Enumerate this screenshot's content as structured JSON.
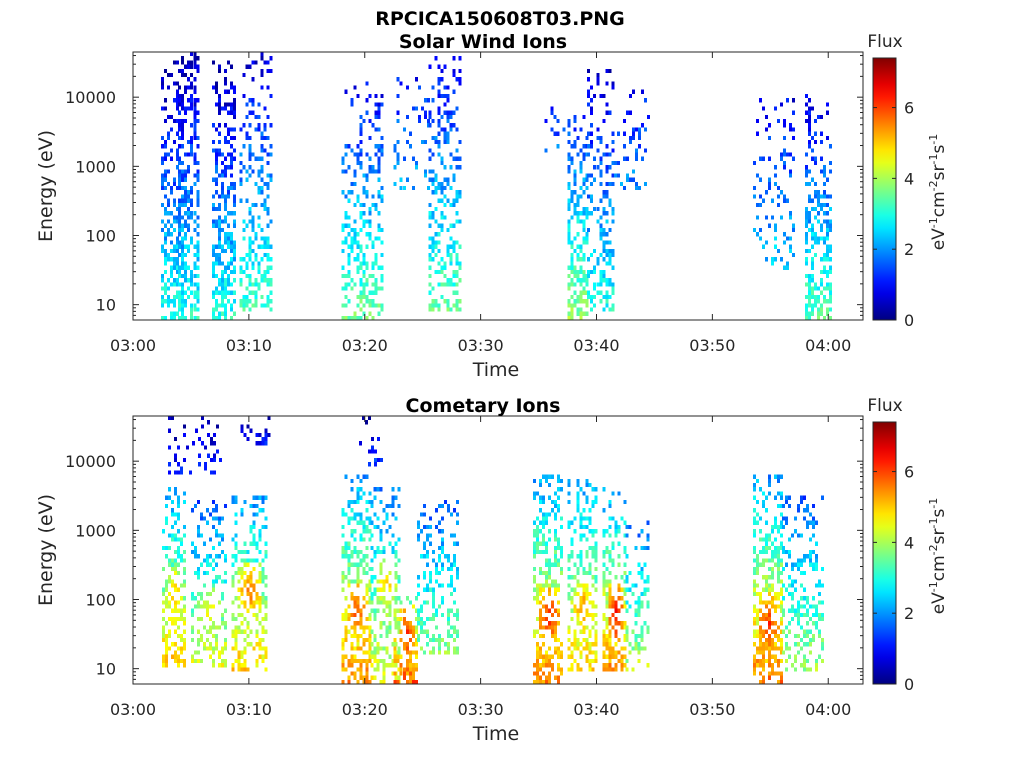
{
  "figure": {
    "title": "RPCICA150608T03.PNG"
  },
  "colorbar": {
    "label": "Flux",
    "unit_base": "eV",
    "unit_sup1": "-1",
    "unit_mid1": "cm",
    "unit_sup2": "-2",
    "unit_mid2": "sr",
    "unit_sup3": "-1",
    "unit_mid3": "s",
    "unit_sup4": "-1",
    "ticks": [
      "0",
      "2",
      "4",
      "6"
    ],
    "tick_values": [
      0,
      2,
      4,
      6
    ],
    "range": [
      0,
      7.4
    ],
    "colormap": "jet"
  },
  "chart_data": [
    {
      "type": "heatmap",
      "title": "Solar Wind Ions",
      "xlabel": "Time",
      "ylabel": "Energy (eV)",
      "x_range_minutes": [
        0,
        63
      ],
      "y_range_eV": [
        6,
        45000
      ],
      "y_scale": "log",
      "xticks": [
        "03:00",
        "03:10",
        "03:20",
        "03:30",
        "03:40",
        "03:50",
        "04:00"
      ],
      "xtick_values_minutes": [
        0,
        10,
        20,
        30,
        40,
        50,
        60
      ],
      "yticks": [
        "10",
        "100",
        "1000",
        "10000"
      ],
      "ytick_values": [
        10,
        100,
        1000,
        10000
      ],
      "grid": false,
      "clusters": [
        {
          "t0": 2.4,
          "t1": 3.8,
          "e_lo": 6,
          "e_hi": 30000,
          "f_hi": 3.0,
          "f_lo": 0.3,
          "density": 0.55
        },
        {
          "t0": 3.9,
          "t1": 5.7,
          "e_lo": 6,
          "e_hi": 40000,
          "f_hi": 3.0,
          "f_lo": 0.3,
          "density": 0.7
        },
        {
          "t0": 6.8,
          "t1": 8.8,
          "e_lo": 6,
          "e_hi": 30000,
          "f_hi": 3.0,
          "f_lo": 0.3,
          "density": 0.7
        },
        {
          "t0": 9.2,
          "t1": 11.8,
          "e_lo": 7,
          "e_hi": 40000,
          "f_hi": 3.3,
          "f_lo": 0.6,
          "density": 0.45
        },
        {
          "t0": 18.0,
          "t1": 21.5,
          "e_lo": 6,
          "e_hi": 15000,
          "f_hi": 3.6,
          "f_lo": 0.8,
          "density": 0.45
        },
        {
          "t0": 22.5,
          "t1": 25.5,
          "e_lo": 400,
          "e_hi": 20000,
          "f_hi": 2.2,
          "f_lo": 1.0,
          "density": 0.2
        },
        {
          "t0": 25.5,
          "t1": 28.2,
          "e_lo": 7,
          "e_hi": 35000,
          "f_hi": 3.5,
          "f_lo": 0.8,
          "density": 0.5
        },
        {
          "t0": 35.5,
          "t1": 37.5,
          "e_lo": 1500,
          "e_hi": 8000,
          "f_hi": 1.8,
          "f_lo": 1.0,
          "density": 0.2
        },
        {
          "t0": 37.5,
          "t1": 39.2,
          "e_lo": 6,
          "e_hi": 6000,
          "f_hi": 3.8,
          "f_lo": 1.2,
          "density": 0.6
        },
        {
          "t0": 39.2,
          "t1": 41.5,
          "e_lo": 7,
          "e_hi": 25000,
          "f_hi": 3.0,
          "f_lo": 0.6,
          "density": 0.45
        },
        {
          "t0": 41.5,
          "t1": 44.5,
          "e_lo": 400,
          "e_hi": 12000,
          "f_hi": 2.0,
          "f_lo": 1.0,
          "density": 0.2
        },
        {
          "t0": 53.5,
          "t1": 57.0,
          "e_lo": 30,
          "e_hi": 9000,
          "f_hi": 2.5,
          "f_lo": 0.8,
          "density": 0.2
        },
        {
          "t0": 58.0,
          "t1": 60.3,
          "e_lo": 6,
          "e_hi": 10000,
          "f_hi": 3.4,
          "f_lo": 0.6,
          "density": 0.55
        }
      ]
    },
    {
      "type": "heatmap",
      "title": "Cometary Ions",
      "xlabel": "Time",
      "ylabel": "Energy (eV)",
      "x_range_minutes": [
        0,
        63
      ],
      "y_range_eV": [
        6,
        45000
      ],
      "y_scale": "log",
      "xticks": [
        "03:00",
        "03:10",
        "03:20",
        "03:30",
        "03:40",
        "03:50",
        "04:00"
      ],
      "xtick_values_minutes": [
        0,
        10,
        20,
        30,
        40,
        50,
        60
      ],
      "yticks": [
        "10",
        "100",
        "1000",
        "10000"
      ],
      "ytick_values": [
        10,
        100,
        1000,
        10000
      ],
      "grid": false,
      "clusters": [
        {
          "t0": 2.5,
          "t1": 4.5,
          "e_lo": 10,
          "e_hi": 4000,
          "f_hi": 5.0,
          "f_lo": 2.0,
          "density": 0.6,
          "peak_e": 100,
          "peak_f": 5.2
        },
        {
          "t0": 3.0,
          "t1": 7.5,
          "e_lo": 6000,
          "e_hi": 40000,
          "f_hi": 1.2,
          "f_lo": 0.3,
          "density": 0.25
        },
        {
          "t0": 5.0,
          "t1": 8.0,
          "e_lo": 10,
          "e_hi": 2500,
          "f_hi": 4.5,
          "f_lo": 1.5,
          "density": 0.45,
          "peak_e": 60,
          "peak_f": 4.8
        },
        {
          "t0": 8.5,
          "t1": 11.5,
          "e_lo": 8,
          "e_hi": 3000,
          "f_hi": 5.0,
          "f_lo": 2.0,
          "density": 0.55,
          "peak_e": 120,
          "peak_f": 5.6
        },
        {
          "t0": 9.0,
          "t1": 12.0,
          "e_lo": 15000,
          "e_hi": 40000,
          "f_hi": 1.2,
          "f_lo": 0.3,
          "density": 0.25
        },
        {
          "t0": 18.0,
          "t1": 20.5,
          "e_lo": 6,
          "e_hi": 6000,
          "f_hi": 5.5,
          "f_lo": 2.0,
          "density": 0.65,
          "peak_e": 60,
          "peak_f": 6.0
        },
        {
          "t0": 20.5,
          "t1": 23.0,
          "e_lo": 6,
          "e_hi": 4000,
          "f_hi": 4.5,
          "f_lo": 1.8,
          "density": 0.55,
          "peak_e": 150,
          "peak_f": 5.0
        },
        {
          "t0": 22.5,
          "t1": 24.5,
          "e_lo": 6,
          "e_hi": 100,
          "f_hi": 5.8,
          "f_lo": 3.5,
          "density": 0.7,
          "peak_e": 30,
          "peak_f": 6.2
        },
        {
          "t0": 24.5,
          "t1": 28.0,
          "e_lo": 15,
          "e_hi": 2500,
          "f_hi": 3.8,
          "f_lo": 1.5,
          "density": 0.45
        },
        {
          "t0": 19.5,
          "t1": 21.5,
          "e_lo": 8000,
          "e_hi": 40000,
          "f_hi": 1.3,
          "f_lo": 0.3,
          "density": 0.2
        },
        {
          "t0": 34.5,
          "t1": 37.0,
          "e_lo": 6,
          "e_hi": 6000,
          "f_hi": 5.5,
          "f_lo": 2.0,
          "density": 0.65,
          "peak_e": 50,
          "peak_f": 6.3
        },
        {
          "t0": 37.5,
          "t1": 40.0,
          "e_lo": 8,
          "e_hi": 5000,
          "f_hi": 5.0,
          "f_lo": 2.0,
          "density": 0.6,
          "peak_e": 70,
          "peak_f": 5.5
        },
        {
          "t0": 40.5,
          "t1": 42.5,
          "e_lo": 8,
          "e_hi": 4000,
          "f_hi": 5.5,
          "f_lo": 2.0,
          "density": 0.6,
          "peak_e": 60,
          "peak_f": 6.4
        },
        {
          "t0": 42.5,
          "t1": 44.5,
          "e_lo": 8,
          "e_hi": 1500,
          "f_hi": 4.2,
          "f_lo": 1.6,
          "density": 0.4
        },
        {
          "t0": 53.5,
          "t1": 56.0,
          "e_lo": 6,
          "e_hi": 6000,
          "f_hi": 5.6,
          "f_lo": 2.0,
          "density": 0.65,
          "peak_e": 40,
          "peak_f": 6.2
        },
        {
          "t0": 56.0,
          "t1": 59.5,
          "e_lo": 8,
          "e_hi": 3000,
          "f_hi": 4.0,
          "f_lo": 1.5,
          "density": 0.45
        }
      ]
    }
  ]
}
